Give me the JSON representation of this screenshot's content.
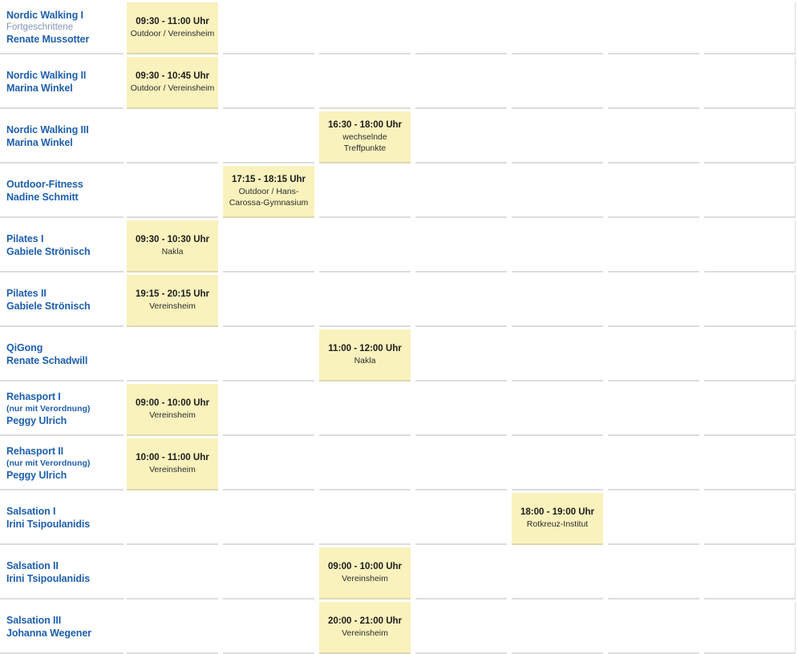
{
  "palette": {
    "accent_blue": "#1e5fad",
    "muted_blue": "#8395b8",
    "slot_yellow": "#f9f2bd",
    "slot_border": "#ddd8b0",
    "cell_border": "#dcdcdc",
    "slot_time_color": "#1c1c1c",
    "slot_location_color": "#2d2d2d"
  },
  "schedule": {
    "day_columns": 7,
    "rows": [
      {
        "course": "Nordic Walking I",
        "note": "Fortgeschrittene",
        "note_style": "muted",
        "instructor": "Renate Mussotter",
        "slots": [
          {
            "day": 0,
            "time": "09:30 - 11:00 Uhr",
            "location": "Outdoor / Vereinsheim"
          }
        ]
      },
      {
        "course": "Nordic Walking II",
        "instructor": "Marina Winkel",
        "slots": [
          {
            "day": 0,
            "time": "09:30 - 10:45 Uhr",
            "location": "Outdoor / Vereinsheim"
          }
        ]
      },
      {
        "course": "Nordic Walking III",
        "instructor": "Marina Winkel",
        "slots": [
          {
            "day": 2,
            "time": "16:30 - 18:00 Uhr",
            "location": "wechselnde Treffpunkte"
          }
        ]
      },
      {
        "course": "Outdoor-Fitness",
        "instructor": "Nadine Schmitt",
        "slots": [
          {
            "day": 1,
            "time": "17:15 - 18:15 Uhr",
            "location": "Outdoor / Hans-Carossa-Gymnasium"
          }
        ]
      },
      {
        "course": "Pilates I",
        "instructor": "Gabiele Strönisch",
        "slots": [
          {
            "day": 0,
            "time": "09:30 - 10:30 Uhr",
            "location": "Nakla"
          }
        ]
      },
      {
        "course": "Pilates II",
        "instructor": "Gabiele Strönisch",
        "slots": [
          {
            "day": 0,
            "time": "19:15 - 20:15 Uhr",
            "location": "Vereinsheim"
          }
        ]
      },
      {
        "course": "QiGong",
        "instructor": "Renate Schadwill",
        "slots": [
          {
            "day": 2,
            "time": "11:00 - 12:00 Uhr",
            "location": "Nakla"
          }
        ]
      },
      {
        "course": "Rehasport I",
        "note": "(nur mit Verordnung)",
        "note_style": "bold",
        "instructor": "Peggy Ulrich",
        "slots": [
          {
            "day": 0,
            "time": "09:00 - 10:00 Uhr",
            "location": "Vereinsheim"
          }
        ]
      },
      {
        "course": "Rehasport II",
        "note": "(nur mit Verordnung)",
        "note_style": "bold",
        "instructor": "Peggy Ulrich",
        "slots": [
          {
            "day": 0,
            "time": "10:00 - 11:00 Uhr",
            "location": "Vereinsheim"
          }
        ]
      },
      {
        "course": "Salsation I",
        "instructor": "Irini Tsipoulanidis",
        "slots": [
          {
            "day": 4,
            "time": "18:00 - 19:00 Uhr",
            "location": "Rotkreuz-Institut"
          }
        ]
      },
      {
        "course": "Salsation II",
        "instructor": "Irini Tsipoulanidis",
        "slots": [
          {
            "day": 2,
            "time": "09:00 - 10:00 Uhr",
            "location": "Vereinsheim"
          }
        ]
      },
      {
        "course": "Salsation III",
        "instructor": "Johanna Wegener",
        "slots": [
          {
            "day": 2,
            "time": "20:00 - 21:00 Uhr",
            "location": "Vereinsheim"
          }
        ]
      }
    ]
  }
}
